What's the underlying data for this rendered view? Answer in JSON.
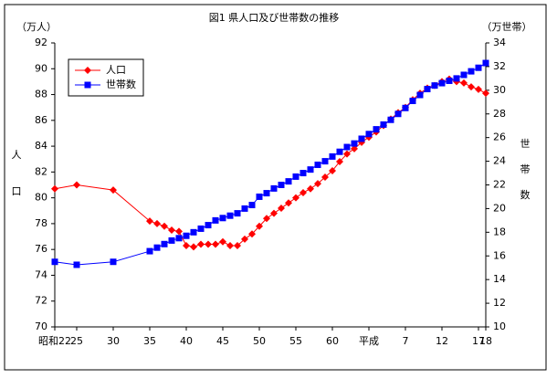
{
  "chart_data": {
    "type": "line",
    "title": "図1 県人口及び世帯数の推移",
    "y_label": [
      "人",
      "口"
    ],
    "y2_label": [
      "世",
      "帯",
      "数"
    ],
    "y_unit": "（万人）",
    "y2_unit": "（万世帯）",
    "x": [
      22,
      25,
      30,
      35,
      36,
      37,
      38,
      39,
      40,
      41,
      42,
      43,
      44,
      45,
      46,
      47,
      48,
      49,
      50,
      51,
      52,
      53,
      54,
      55,
      56,
      57,
      58,
      59,
      60,
      61,
      62,
      63,
      64,
      65,
      66,
      67,
      68,
      69,
      70,
      71,
      72,
      73,
      74,
      75,
      76,
      77,
      78,
      79,
      80,
      81
    ],
    "xlim": [
      22,
      81
    ],
    "xticks": [
      {
        "value": 22,
        "label": "昭和22"
      },
      25,
      30,
      35,
      40,
      45,
      50,
      55,
      60,
      {
        "value": 65,
        "label": "平成"
      },
      {
        "value": 70,
        "label": "7"
      },
      {
        "value": 75,
        "label": "12"
      },
      {
        "value": 80,
        "label": "17"
      },
      {
        "value": 81,
        "label": "18"
      }
    ],
    "ylim": [
      70,
      92
    ],
    "yticks": [
      70,
      72,
      74,
      76,
      78,
      80,
      82,
      84,
      86,
      88,
      90,
      92
    ],
    "y2lim": [
      10,
      34
    ],
    "y2ticks": [
      10,
      12,
      14,
      16,
      18,
      20,
      22,
      24,
      26,
      28,
      30,
      32,
      34
    ],
    "legend": "upper left",
    "series": [
      {
        "name": "人口",
        "color": "#ff0000",
        "marker": "diamond",
        "values": [
          80.7,
          81.0,
          80.6,
          78.2,
          78.0,
          77.8,
          77.5,
          77.4,
          76.3,
          76.2,
          76.4,
          76.4,
          76.4,
          76.6,
          76.3,
          76.3,
          76.8,
          77.2,
          77.8,
          78.4,
          78.8,
          79.2,
          79.6,
          80.0,
          80.4,
          80.7,
          81.1,
          81.6,
          82.1,
          82.8,
          83.4,
          83.8,
          84.3,
          84.7,
          85.1,
          85.6,
          86.1,
          86.6,
          87.0,
          87.6,
          88.1,
          88.5,
          88.7,
          89.0,
          89.2,
          89.0,
          88.9,
          88.6,
          88.4,
          88.1
        ]
      },
      {
        "name": "世帯数",
        "color": "#0000ff",
        "marker": "square",
        "axis": "y2",
        "values": [
          15.5,
          15.25,
          15.5,
          16.4,
          16.7,
          17.0,
          17.3,
          17.5,
          17.7,
          18.0,
          18.3,
          18.6,
          19.0,
          19.2,
          19.4,
          19.6,
          20.0,
          20.3,
          21.0,
          21.3,
          21.7,
          22.0,
          22.3,
          22.7,
          23.0,
          23.3,
          23.7,
          24.0,
          24.4,
          24.8,
          25.2,
          25.5,
          25.9,
          26.3,
          26.7,
          27.1,
          27.5,
          28.0,
          28.5,
          29.1,
          29.6,
          30.1,
          30.4,
          30.6,
          30.8,
          31.0,
          31.3,
          31.6,
          31.9,
          32.3
        ]
      }
    ]
  }
}
